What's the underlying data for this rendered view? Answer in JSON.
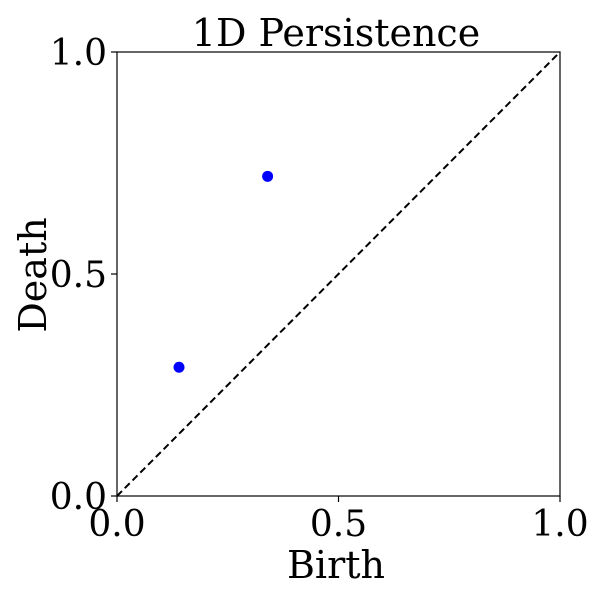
{
  "chart_data": {
    "type": "scatter",
    "title": "1D Persistence",
    "xlabel": "Birth",
    "ylabel": "Death",
    "xlim": [
      0.0,
      1.0
    ],
    "ylim": [
      0.0,
      1.0
    ],
    "xticks": [
      0.0,
      0.5,
      1.0
    ],
    "xtick_labels": [
      "0.0",
      "0.5",
      "1.0"
    ],
    "yticks": [
      0.0,
      0.5,
      1.0
    ],
    "ytick_labels": [
      "0.0",
      "0.5",
      "1.0"
    ],
    "grid": false,
    "series": [
      {
        "points": [
          {
            "x": 0.14,
            "y": 0.29
          },
          {
            "x": 0.34,
            "y": 0.72
          }
        ],
        "color": "#0000ff"
      }
    ],
    "diagonal": {
      "from": [
        0.0,
        0.0
      ],
      "to": [
        1.0,
        1.0
      ],
      "color": "#000000",
      "style": "dashed"
    }
  }
}
